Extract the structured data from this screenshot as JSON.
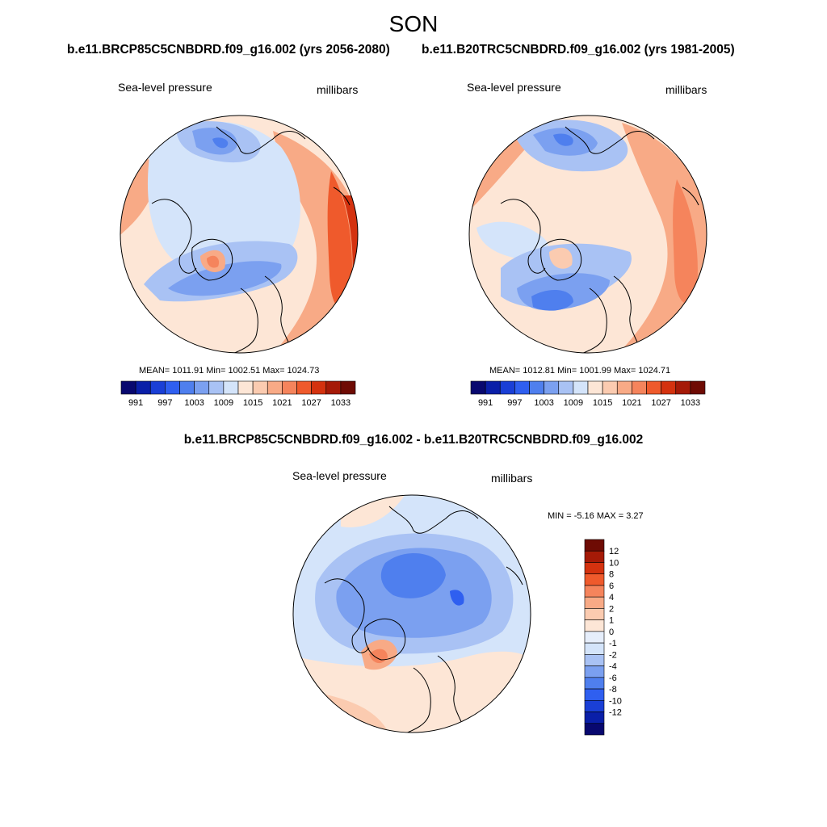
{
  "figure": {
    "season": "SON",
    "case_a_title": "b.e11.BRCP85C5CNBDRD.f09_g16.002 (yrs 2056-2080)",
    "case_b_title": "b.e11.B20TRC5CNBDRD.f09_g16.002 (yrs 1981-2005)",
    "diff_title": "b.e11.BRCP85C5CNBDRD.f09_g16.002 - b.e11.B20TRC5CNBDRD.f09_g16.002"
  },
  "panel_a": {
    "variable": "Sea-level pressure",
    "units": "millibars",
    "stats": "MEAN= 1011.91  Min= 1002.51  Max= 1024.73"
  },
  "panel_b": {
    "variable": "Sea-level pressure",
    "units": "millibars",
    "stats": "MEAN= 1012.81  Min= 1001.99  Max= 1024.71"
  },
  "panel_diff": {
    "variable": "Sea-level pressure",
    "units": "millibars",
    "minmax": "MIN =  -5.16 MAX =   3.27"
  },
  "abs_colorbar": {
    "labels": [
      "991",
      "997",
      "1003",
      "1009",
      "1015",
      "1021",
      "1027",
      "1033"
    ],
    "levels": [
      991,
      994,
      997,
      1000,
      1003,
      1006,
      1009,
      1012,
      1015,
      1018,
      1021,
      1024,
      1027,
      1030,
      1033
    ],
    "colors": [
      "#08086f",
      "#0a1fa8",
      "#1a3fd6",
      "#2f5ff0",
      "#4f7fee",
      "#7ba0f0",
      "#a9c2f4",
      "#d4e4fa",
      "#fde6d6",
      "#fbcbb0",
      "#f8aa86",
      "#f5845c",
      "#ef5a2c",
      "#d4320f",
      "#a51a07",
      "#6e0b04"
    ]
  },
  "diff_colorbar": {
    "labels": [
      "12",
      "10",
      "8",
      "6",
      "4",
      "2",
      "1",
      "0",
      "-1",
      "-2",
      "-4",
      "-6",
      "-8",
      "-10",
      "-12"
    ],
    "colors": [
      "#6e0b04",
      "#a51a07",
      "#d4320f",
      "#ef5a2c",
      "#f5845c",
      "#f8aa86",
      "#fbcbb0",
      "#fde6d6",
      "#e6eefb",
      "#d4e4fa",
      "#a9c2f4",
      "#7ba0f0",
      "#4f7fee",
      "#2f5ff0",
      "#1a3fd6",
      "#0a1fa8",
      "#08086f"
    ]
  }
}
